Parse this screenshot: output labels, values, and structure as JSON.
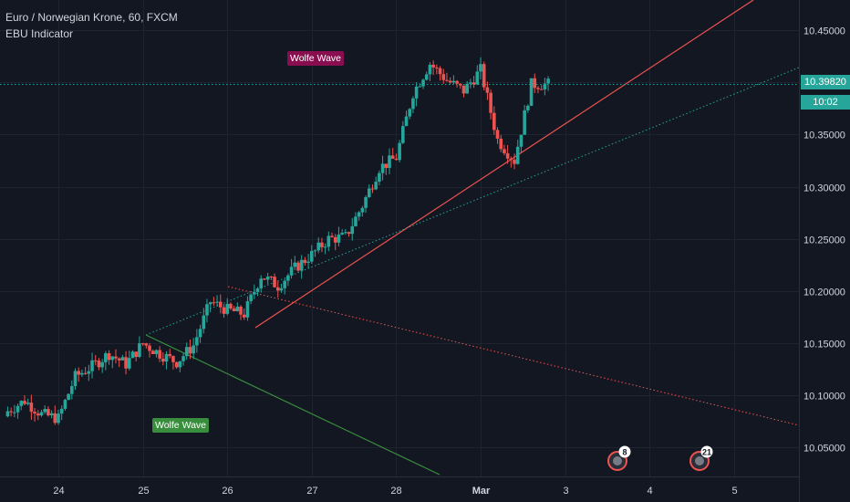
{
  "header": {
    "symbol_line": "Euro / Norwegian Krone, 60, FXCM",
    "indicator_line": "EBU Indicator"
  },
  "annotations": {
    "wolfe_wave_red": "Wolfe Wave",
    "wolfe_wave_green": "Wolfe Wave"
  },
  "price_axis": {
    "current_price_label": "10.39820",
    "countdown_label": "10:02"
  },
  "event_badges": [
    {
      "count": "8"
    },
    {
      "count": "21"
    }
  ],
  "colors": {
    "background": "#131722",
    "grid": "#1f2330",
    "up_candle": "#26a69a",
    "down_candle": "#ef5350",
    "red_line": "#ef5350",
    "green_line": "#388e3c",
    "teal_dotted": "#26a69a",
    "text": "#d1d4dc"
  },
  "chart_data": {
    "type": "candlestick",
    "title": "Euro / Norwegian Krone, 60, FXCM",
    "xlabel": "",
    "ylabel": "",
    "ylim": [
      10.027,
      10.478
    ],
    "xlim": [
      23.4,
      5.6
    ],
    "x_ticks": [
      "24",
      "25",
      "26",
      "27",
      "28",
      "Mar",
      "3",
      "4",
      "5"
    ],
    "y_ticks": [
      10.05,
      10.1,
      10.15,
      10.2,
      10.25,
      10.3,
      10.35,
      10.4,
      10.45
    ],
    "y_tick_labels": [
      "10.05000",
      "10.10000",
      "10.15000",
      "10.20000",
      "10.25000",
      "10.30000",
      "10.35000",
      "10.40000",
      "10.45000"
    ],
    "grid": true,
    "last_price": 10.3982,
    "trend_lines": [
      {
        "name": "red-upper",
        "style": "solid",
        "color": "#ef5350",
        "from": [
          "Feb 26 08:00",
          10.163
        ],
        "to": [
          "Mar 5 03:00",
          10.478
        ]
      },
      {
        "name": "red-dotted",
        "style": "dotted",
        "color": "#ef5350",
        "from": [
          "Feb 26 00:00",
          10.203
        ],
        "to": [
          "Mar 6 18:00",
          10.068
        ]
      },
      {
        "name": "teal-dotted",
        "style": "dotted",
        "color": "#26a69a",
        "from": [
          "Feb 25 19:00",
          10.16
        ],
        "to": [
          "Mar 6 18:00",
          10.413
        ]
      },
      {
        "name": "green-solid",
        "style": "solid",
        "color": "#388e3c",
        "from": [
          "Feb 25 03:00",
          10.162
        ],
        "to": [
          "Feb 28 12:00",
          10.027
        ]
      }
    ],
    "candles_note_close_path": [
      [
        23.4,
        10.085
      ],
      [
        23.6,
        10.095
      ],
      [
        23.8,
        10.082
      ],
      [
        24.0,
        10.078
      ],
      [
        24.2,
        10.118
      ],
      [
        24.4,
        10.128
      ],
      [
        24.6,
        10.14
      ],
      [
        24.8,
        10.13
      ],
      [
        25.0,
        10.15
      ],
      [
        25.2,
        10.14
      ],
      [
        25.4,
        10.132
      ],
      [
        25.6,
        10.148
      ],
      [
        25.8,
        10.19
      ],
      [
        26.0,
        10.182
      ],
      [
        26.2,
        10.178
      ],
      [
        26.4,
        10.215
      ],
      [
        26.6,
        10.205
      ],
      [
        26.8,
        10.222
      ],
      [
        27.0,
        10.235
      ],
      [
        27.2,
        10.25
      ],
      [
        27.4,
        10.252
      ],
      [
        27.6,
        10.282
      ],
      [
        27.8,
        10.318
      ],
      [
        28.0,
        10.328
      ],
      [
        28.2,
        10.39
      ],
      [
        28.4,
        10.418
      ],
      [
        28.6,
        10.402
      ],
      [
        28.8,
        10.392
      ],
      [
        29.0,
        10.412
      ],
      [
        29.2,
        10.345
      ],
      [
        29.4,
        10.325
      ],
      [
        29.6,
        10.398
      ],
      [
        29.8,
        10.3982
      ]
    ]
  }
}
